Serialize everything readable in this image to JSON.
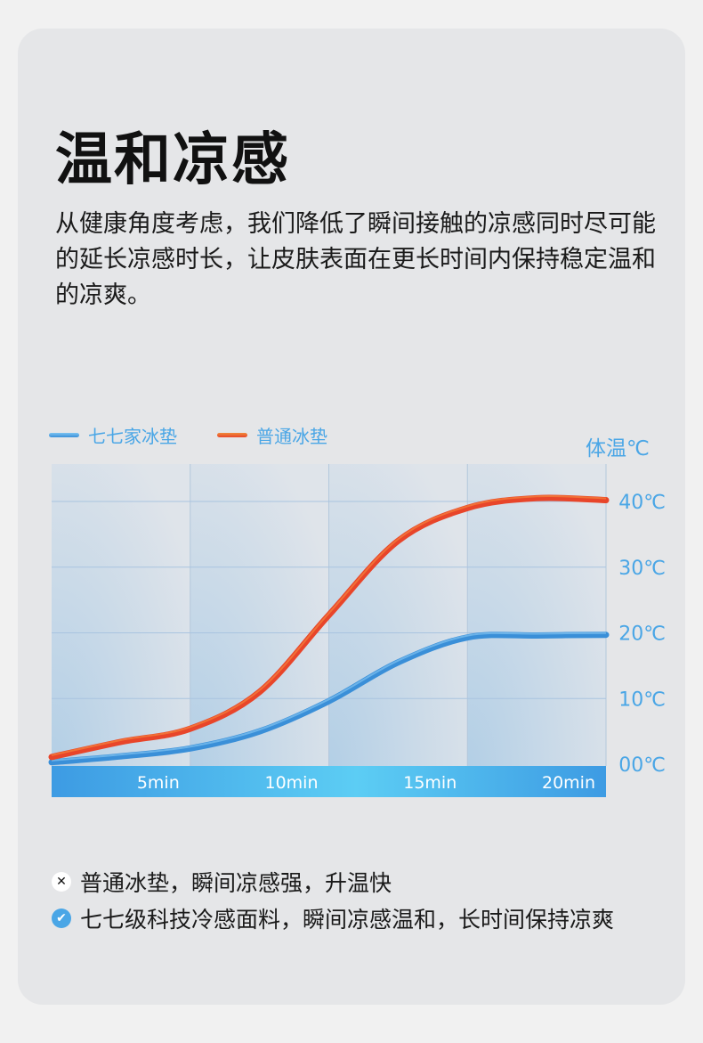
{
  "title": "温和凉感",
  "description": "从健康角度考虑，我们降低了瞬间接触的凉感同时尽可能的延长凉感时长，让皮肤表面在更长时间内保持稳定温和的凉爽。",
  "chart_data": {
    "type": "line",
    "ylabel": "体温℃",
    "x_ticks": [
      "5min",
      "10min",
      "15min",
      "20min"
    ],
    "x_tick_values": [
      5,
      10,
      15,
      20
    ],
    "y_ticks": [
      "00℃",
      "10℃",
      "20℃",
      "30℃",
      "40℃"
    ],
    "y_tick_values": [
      0,
      10,
      20,
      30,
      40
    ],
    "xlim": [
      0,
      20
    ],
    "ylim": [
      0,
      40
    ],
    "grid": true,
    "legend": "top-left",
    "series": [
      {
        "name": "七七家冰垫",
        "color": "#3a8fd8",
        "x": [
          0,
          2.5,
          5,
          7.5,
          10,
          12.5,
          15,
          17.5,
          20
        ],
        "values": [
          0.3,
          1.2,
          2.4,
          5,
          9.6,
          15.5,
          19.3,
          19.6,
          19.7
        ]
      },
      {
        "name": "普通冰垫",
        "color": "#e8452a",
        "x": [
          0,
          2.5,
          5,
          7.5,
          10,
          12.5,
          15,
          17.5,
          20
        ],
        "values": [
          1.1,
          3.4,
          5.4,
          11,
          22.7,
          34,
          39,
          40.5,
          40.2
        ]
      }
    ]
  },
  "notes": [
    {
      "icon": "cross-icon",
      "text": "普通冰垫，瞬间凉感强，升温快"
    },
    {
      "icon": "check-icon",
      "text": "七七级科技冷感面料，瞬间凉感温和，长时间保持凉爽"
    }
  ]
}
